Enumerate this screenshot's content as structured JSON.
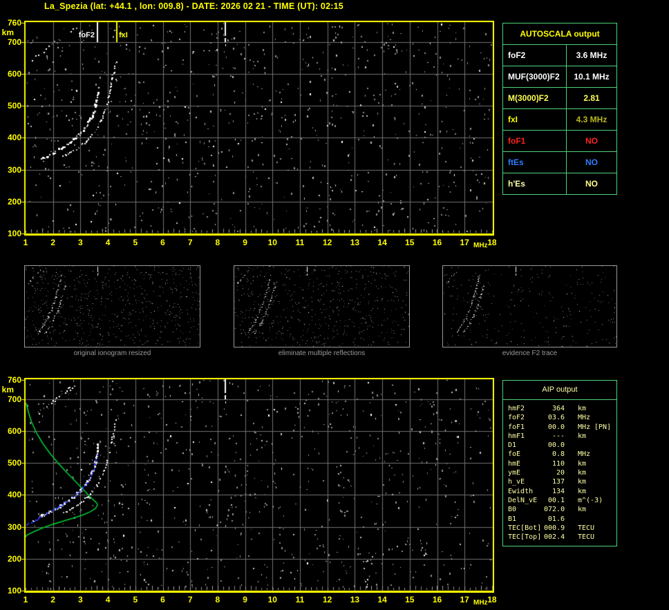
{
  "title": "La_Spezia (lat: +44.1 , lon: 009.8) - DATE: 2026 02 21 - TIME (UT): 02:15",
  "colors": {
    "background": "#000000",
    "axis_yellow": "#ffff00",
    "grid_gray": "#737373",
    "table_green": "#4fd478",
    "pale_yellow": "#ffffa6",
    "caption_gray": "#9a9a9a",
    "profile_green": "#00cc33",
    "fit_blue": "#2e3bff",
    "trace_white": "#ffffff"
  },
  "axes": {
    "y_unit": "km",
    "x_unit": "MHz",
    "y_ticks": [
      "760",
      "700",
      "600",
      "500",
      "400",
      "300",
      "200",
      "100"
    ],
    "x_ticks": [
      "1",
      "2",
      "3",
      "4",
      "5",
      "6",
      "7",
      "8",
      "9",
      "10",
      "11",
      "12",
      "13",
      "14",
      "15",
      "16",
      "17",
      "18"
    ]
  },
  "top_plot": {
    "markers": {
      "foF2": "foF2",
      "fxI": "fxI"
    }
  },
  "autoscala": {
    "header": "AUTOSCALA output",
    "rows": [
      {
        "label": "foF2",
        "value": "3.6 MHz",
        "label_color": "#ffffff",
        "value_color": "#ffffff"
      },
      {
        "label": "MUF(3000)F2",
        "value": "10.1 MHz",
        "label_color": "#ffffff",
        "value_color": "#ffffff"
      },
      {
        "label": "M(3000)F2",
        "value": "2.81",
        "label_color": "#ffff55",
        "value_color": "#ffff55"
      },
      {
        "label": "fxI",
        "value": "4.3 MHz",
        "label_color": "#ffff00",
        "value_color": "#b9b91c"
      },
      {
        "label": "foF1",
        "value": "NO",
        "label_color": "#ff2222",
        "value_color": "#ff2222"
      },
      {
        "label": "ftEs",
        "value": "NO",
        "label_color": "#2d7dff",
        "value_color": "#2d7dff"
      },
      {
        "label": "h'Es",
        "value": "NO",
        "label_color": "#ffffa6",
        "value_color": "#ffff88"
      }
    ]
  },
  "thumbnails": [
    {
      "caption": "original ionogram resized"
    },
    {
      "caption": "eliminate multiple reflections"
    },
    {
      "caption": "evidence F2 trace"
    }
  ],
  "aip": {
    "header": "AIP output",
    "rows": [
      {
        "label": "hmF2",
        "value": "364",
        "unit": "km",
        "extra": ""
      },
      {
        "label": "foF2",
        "value": "03.6",
        "unit": "MHz",
        "extra": ""
      },
      {
        "label": "foF1",
        "value": "00.0",
        "unit": "MHz",
        "extra": "[PN]"
      },
      {
        "label": "hmF1",
        "value": "---",
        "unit": "km",
        "extra": ""
      },
      {
        "label": "D1",
        "value": "00.0",
        "unit": "",
        "extra": ""
      },
      {
        "label": "foE",
        "value": "0.8",
        "unit": "MHz",
        "extra": ""
      },
      {
        "label": "hmE",
        "value": "110",
        "unit": "km",
        "extra": ""
      },
      {
        "label": "ymE",
        "value": "20",
        "unit": "km",
        "extra": ""
      },
      {
        "label": "h_vE",
        "value": "137",
        "unit": "km",
        "extra": ""
      },
      {
        "label": "Ewidth",
        "value": "134",
        "unit": "km",
        "extra": ""
      },
      {
        "label": "DelN_vE",
        "value": "00.1",
        "unit": "m^(-3)",
        "extra": ""
      },
      {
        "label": "B0",
        "value": "072.0",
        "unit": "km",
        "extra": ""
      },
      {
        "label": "B1",
        "value": "01.6",
        "unit": "",
        "extra": ""
      },
      {
        "label": "TEC[Bot]",
        "value": "000.9",
        "unit": "TECU",
        "extra": ""
      },
      {
        "label": "TEC[Top]",
        "value": "002.4",
        "unit": "TECU",
        "extra": ""
      }
    ]
  },
  "chart_data": {
    "type": "scatter",
    "x_label": "MHz",
    "y_label": "km",
    "x_range": [
      1,
      18
    ],
    "y_range": [
      100,
      760
    ],
    "grid": true,
    "echo_traces": {
      "o_mode": [
        [
          1.6,
          334
        ],
        [
          1.72,
          339
        ],
        [
          1.86,
          345
        ],
        [
          2.02,
          352
        ],
        [
          2.2,
          360
        ],
        [
          2.4,
          371
        ],
        [
          2.6,
          383
        ],
        [
          2.8,
          397
        ],
        [
          3.0,
          413
        ],
        [
          3.18,
          431
        ],
        [
          3.33,
          450
        ],
        [
          3.45,
          471
        ],
        [
          3.54,
          495
        ],
        [
          3.6,
          520
        ],
        [
          3.64,
          545
        ],
        [
          3.66,
          565
        ]
      ],
      "x_mode": [
        [
          2.35,
          341
        ],
        [
          2.55,
          349
        ],
        [
          2.75,
          358
        ],
        [
          2.95,
          369
        ],
        [
          3.15,
          383
        ],
        [
          3.35,
          400
        ],
        [
          3.52,
          419
        ],
        [
          3.68,
          441
        ],
        [
          3.82,
          466
        ],
        [
          3.93,
          493
        ],
        [
          4.02,
          522
        ],
        [
          4.1,
          553
        ],
        [
          4.18,
          585
        ],
        [
          4.25,
          615
        ],
        [
          4.3,
          640
        ]
      ],
      "oblique": [
        [
          1.18,
          641
        ],
        [
          2.91,
          750
        ]
      ],
      "rfi_streak_mhz": 8.25
    },
    "autoscala_plot": {
      "markers": [
        {
          "label": "foF2",
          "mhz": 3.6
        },
        {
          "label": "fxI",
          "mhz": 4.3
        }
      ]
    },
    "aip_plot": {
      "density_profile_green": [
        [
          1.02,
          688
        ],
        [
          1.1,
          660
        ],
        [
          1.22,
          628
        ],
        [
          1.4,
          594
        ],
        [
          1.62,
          562
        ],
        [
          1.88,
          531
        ],
        [
          2.18,
          500
        ],
        [
          2.5,
          470
        ],
        [
          2.82,
          442
        ],
        [
          3.1,
          417
        ],
        [
          3.33,
          396
        ],
        [
          3.5,
          382
        ],
        [
          3.6,
          374
        ],
        [
          3.62,
          368
        ],
        [
          3.55,
          358
        ],
        [
          3.38,
          348
        ],
        [
          3.12,
          338
        ],
        [
          2.8,
          329
        ],
        [
          2.42,
          319
        ],
        [
          2.0,
          308
        ],
        [
          1.6,
          296
        ],
        [
          1.28,
          284
        ],
        [
          1.05,
          274
        ],
        [
          1.0,
          268
        ]
      ],
      "fitted_trace_blue": [
        [
          1.05,
          306
        ],
        [
          1.22,
          314
        ],
        [
          1.42,
          323
        ],
        [
          1.65,
          334
        ],
        [
          1.9,
          346
        ],
        [
          2.15,
          358
        ],
        [
          2.4,
          371
        ],
        [
          2.65,
          386
        ],
        [
          2.88,
          402
        ],
        [
          3.08,
          419
        ],
        [
          3.26,
          438
        ],
        [
          3.4,
          459
        ],
        [
          3.5,
          482
        ],
        [
          3.58,
          507
        ],
        [
          3.63,
          527
        ],
        [
          3.66,
          538
        ]
      ]
    },
    "noise": {
      "top_seed": 101,
      "bottom_seed": 202,
      "thumb_seeds": [
        11,
        22,
        33
      ],
      "dot_count": 880
    }
  }
}
